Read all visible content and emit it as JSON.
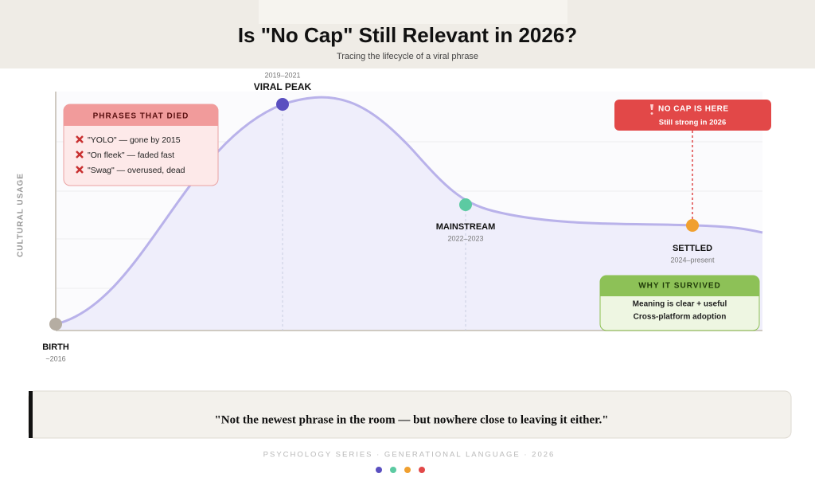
{
  "header": {
    "title": "Is \"No Cap\" Still Relevant in 2026?",
    "subtitle": "Tracing the lifecycle of a viral phrase"
  },
  "axis_label": "CULTURAL USAGE",
  "stages": [
    {
      "label": "BIRTH",
      "period": "~2016"
    },
    {
      "label": "VIRAL PEAK",
      "period": "2019–2021"
    },
    {
      "label": "MAINSTREAM",
      "period": "2022–2023"
    },
    {
      "label": "SETTLED",
      "period": "2024–present"
    }
  ],
  "died_box": {
    "title": "PHRASES THAT DIED",
    "items": [
      "\"YOLO\" — gone by 2015",
      "\"On fleek\" — faded fast",
      "\"Swag\" — overused, dead"
    ]
  },
  "callout": {
    "title": "NO CAP IS HERE",
    "text": "Still strong in 2026"
  },
  "survived_box": {
    "title": "WHY IT SURVIVED",
    "items": [
      "Meaning is clear + useful",
      "Cross-platform adoption"
    ]
  },
  "quote": "\"Not the newest phrase in the room — but nowhere close to leaving it either.\"",
  "footer": "PSYCHOLOGY SERIES · GENERATIONAL LANGUAGE · 2026"
}
